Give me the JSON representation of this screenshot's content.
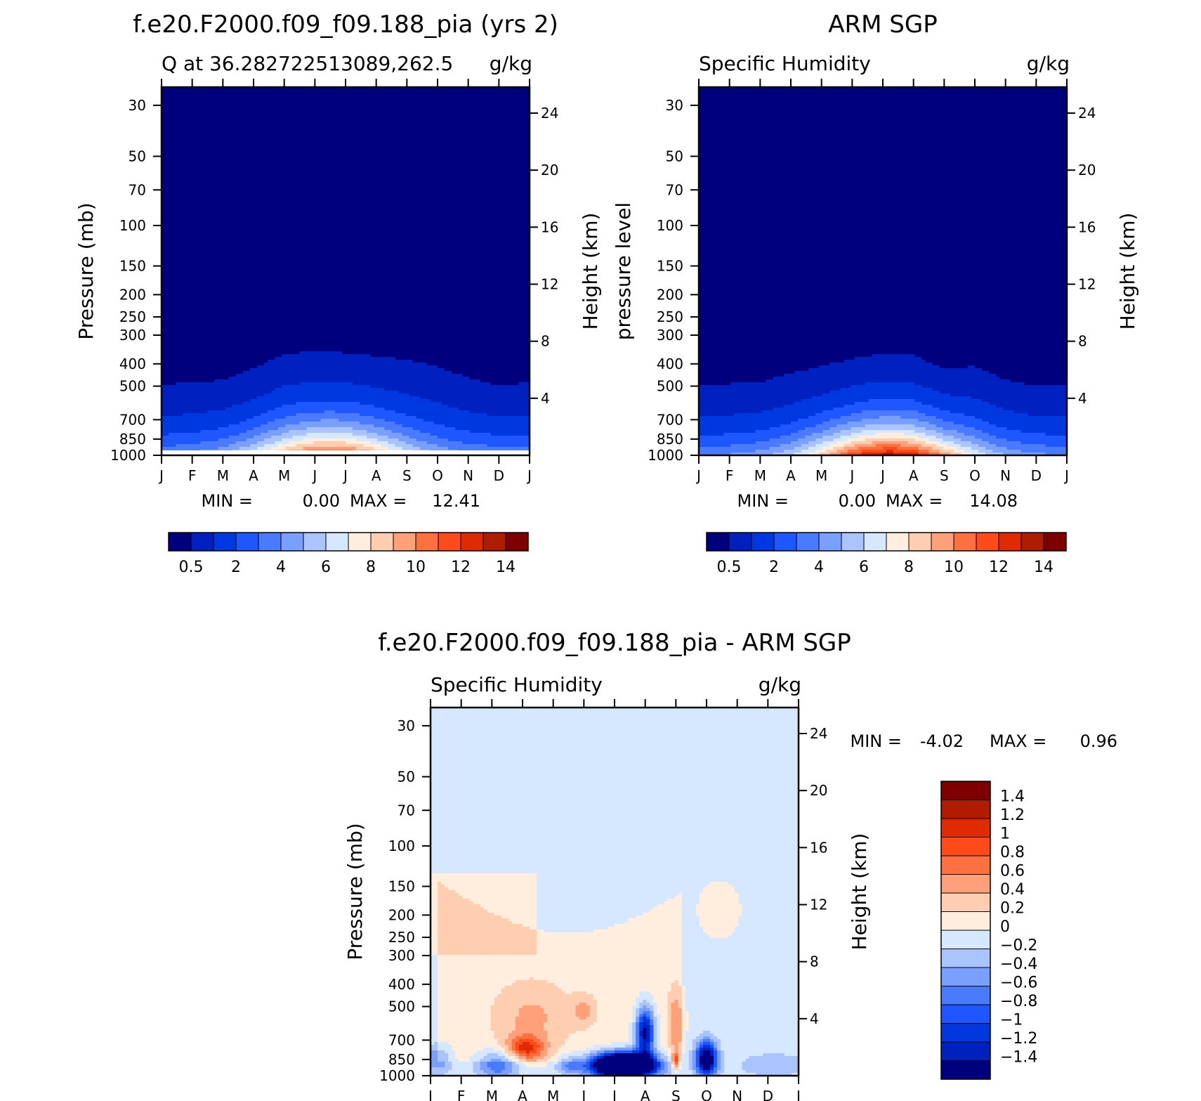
{
  "chart_data": [
    {
      "type": "heatmap",
      "title": "f.e20.F2000.f09_f09.188_pia (yrs 2)",
      "subtitle_left": "Q at 36.28272251308 9,262.5",
      "subtitle_left_display": "Q  at  36.282722513089,262.5",
      "subtitle_right": "g/kg",
      "ylabel_left": "Pressure (mb)",
      "ylabel_right": "Height (km)",
      "x_ticks": [
        "J",
        "F",
        "M",
        "A",
        "M",
        "J",
        "J",
        "A",
        "S",
        "O",
        "N",
        "D",
        "J"
      ],
      "y_ticks": [
        30,
        50,
        70,
        100,
        150,
        200,
        250,
        300,
        400,
        500,
        700,
        850,
        1000
      ],
      "height_ticks": [
        24,
        20,
        16,
        12,
        8,
        4
      ],
      "ylim": [
        1000,
        25
      ],
      "y_scale": "log",
      "min_label": "MIN =",
      "min_value": "0.00",
      "max_label": "MAX =",
      "max_value": "12.41",
      "min": 0.0,
      "max": 12.41,
      "colorbar_ticks": [
        "0.5",
        "2",
        "4",
        "6",
        "8",
        "10",
        "12",
        "14"
      ],
      "colorbar_colors": [
        "#00007f",
        "#0020c0",
        "#0038e0",
        "#1e56ff",
        "#4a7bff",
        "#7aa0ff",
        "#a9c4ff",
        "#d6e8ff",
        "#ffeedd",
        "#ffcdb0",
        "#ffa07a",
        "#ff7040",
        "#ff4a1a",
        "#e02a00",
        "#b01c00",
        "#7f0000"
      ],
      "moisture_top_hpa": [
        490,
        485,
        470,
        420,
        360,
        355,
        358,
        370,
        385,
        410,
        460,
        500,
        480
      ],
      "surface_peak_month": 5.5
    },
    {
      "type": "heatmap",
      "title": "ARM SGP",
      "subtitle_left": "Specific Humidity",
      "subtitle_right": "g/kg",
      "ylabel_left": "pressure level",
      "ylabel_right": "Height (km)",
      "x_ticks": [
        "J",
        "F",
        "M",
        "A",
        "M",
        "J",
        "J",
        "A",
        "S",
        "O",
        "N",
        "D",
        "J"
      ],
      "y_ticks": [
        30,
        50,
        70,
        100,
        150,
        200,
        250,
        300,
        400,
        500,
        700,
        850,
        1000
      ],
      "height_ticks": [
        24,
        20,
        16,
        12,
        8,
        4
      ],
      "ylim": [
        1000,
        25
      ],
      "y_scale": "log",
      "min_label": "MIN =",
      "min_value": "0.00",
      "max_label": "MAX =",
      "max_value": "14.08",
      "min": 0.0,
      "max": 14.08,
      "colorbar_ticks": [
        "0.5",
        "2",
        "4",
        "6",
        "8",
        "10",
        "12",
        "14"
      ],
      "moisture_top_hpa": [
        490,
        488,
        480,
        440,
        410,
        380,
        362,
        365,
        420,
        410,
        470,
        500,
        495
      ],
      "surface_peak_month": 6.2
    },
    {
      "type": "heatmap",
      "title": "f.e20.F2000.f09_f09.188_pia - ARM SGP",
      "subtitle_left": "Specific Humidity",
      "subtitle_right": "g/kg",
      "ylabel_left": "Pressure (mb)",
      "ylabel_right": "Height (km)",
      "x_ticks": [
        "J",
        "F",
        "M",
        "A",
        "M",
        "J",
        "J",
        "A",
        "S",
        "O",
        "N",
        "D",
        "J"
      ],
      "y_ticks": [
        30,
        50,
        70,
        100,
        150,
        200,
        250,
        300,
        400,
        500,
        700,
        850,
        1000
      ],
      "height_ticks": [
        24,
        20,
        16,
        12,
        8,
        4
      ],
      "ylim": [
        1000,
        25
      ],
      "y_scale": "log",
      "min_label": "MIN =",
      "min_value": "-4.02",
      "max_label": "MAX =",
      "max_value": "0.96",
      "min": -4.02,
      "max": 0.96,
      "colorbar_ticks": [
        "1.4",
        "1.2",
        "1",
        "0.8",
        "0.6",
        "0.4",
        "0.2",
        "0",
        "-0.2",
        "-0.4",
        "-0.6",
        "-0.8",
        "-1",
        "-1.2",
        "-1.4"
      ],
      "colorbar_colors": [
        "#7f0000",
        "#b01c00",
        "#e02a00",
        "#ff4a1a",
        "#ff7040",
        "#ffa07a",
        "#ffcdb0",
        "#ffeedd",
        "#d6e8ff",
        "#a9c4ff",
        "#7aa0ff",
        "#4a7bff",
        "#1e56ff",
        "#0038e0",
        "#0020c0",
        "#00007f"
      ]
    }
  ]
}
